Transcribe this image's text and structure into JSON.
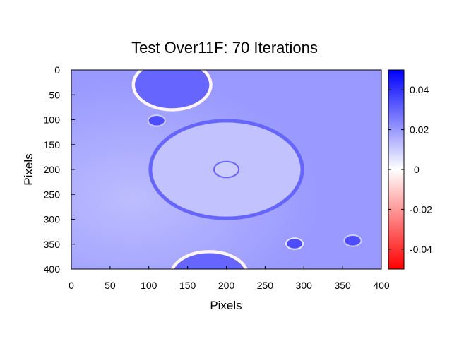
{
  "chart_data": {
    "type": "heatmap",
    "title": "Test Over11F: 70 Iterations",
    "xlabel": "Pixels",
    "ylabel": "Pixels",
    "xlim": [
      0,
      400
    ],
    "ylim": [
      400,
      0
    ],
    "xticks": [
      0,
      50,
      100,
      150,
      200,
      250,
      300,
      350,
      400
    ],
    "yticks": [
      0,
      50,
      100,
      150,
      200,
      250,
      300,
      350,
      400
    ],
    "colorbar": {
      "range": [
        -0.05,
        0.05
      ],
      "ticks": [
        0.04,
        0.02,
        0,
        -0.02,
        -0.04
      ],
      "tick_labels": [
        "0.04",
        "0.02",
        "0",
        "-0.02",
        "-0.04"
      ],
      "high_color": "#0000ff",
      "mid_color": "#ffffff",
      "low_color": "#ff0000"
    },
    "background_value": 0.02,
    "grid": false,
    "features": [
      {
        "shape": "ellipse",
        "cx": 200,
        "cy": 200,
        "rx": 98,
        "ry": 98,
        "interior_value": 0.012,
        "rim_value": 0.03
      },
      {
        "shape": "circle",
        "cx": 200,
        "cy": 200,
        "r": 16,
        "interior_value": 0.01,
        "rim_value": 0.03
      },
      {
        "shape": "circle",
        "cx": 130,
        "cy": 30,
        "r": 50,
        "interior_value": 0.03,
        "rim_value": -0.002
      },
      {
        "shape": "circle",
        "cx": 110,
        "cy": 102,
        "r": 11,
        "interior_value": 0.035,
        "rim_value": 0.01
      },
      {
        "shape": "circle",
        "cx": 288,
        "cy": 349,
        "r": 11,
        "interior_value": 0.035,
        "rim_value": 0.005
      },
      {
        "shape": "circle",
        "cx": 363,
        "cy": 343,
        "r": 11,
        "interior_value": 0.035,
        "rim_value": 0.01
      },
      {
        "shape": "circle",
        "cx": 178,
        "cy": 415,
        "r": 50,
        "interior_value": 0.03,
        "rim_value": -0.002
      }
    ]
  }
}
